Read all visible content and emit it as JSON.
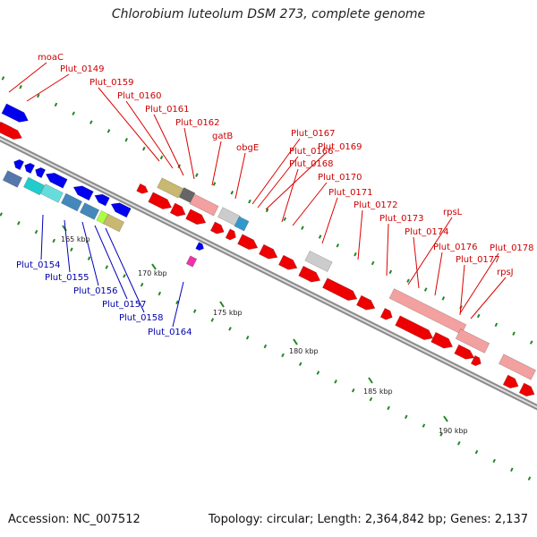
{
  "title": "Chlorobium luteolum DSM 273, complete genome",
  "footer": {
    "accession": "Accession: NC_007512",
    "info": "Topology: circular; Length: 2,364,842 bp; Genes: 2,137"
  },
  "colors": {
    "forward_strand": "#ee0000",
    "reverse_strand": "#0000ee",
    "pseudo_pink": "#f2a0a0",
    "label_forward": "#cc0000",
    "label_reverse": "#0000aa",
    "backbone": "#999999",
    "tick": "#228822"
  },
  "scale_labels": [
    "165 kbp",
    "170 kbp",
    "175 kbp",
    "180 kbp",
    "185 kbp",
    "190 kbp"
  ],
  "forward_gene_labels": [
    "moaC",
    "Plut_0149",
    "Plut_0159",
    "Plut_0160",
    "Plut_0161",
    "Plut_0162",
    "gatB",
    "obgE",
    "Plut_0167",
    "Plut_0166",
    "Plut_0169",
    "Plut_0168",
    "Plut_0170",
    "Plut_0171",
    "Plut_0172",
    "Plut_0173",
    "rpsL",
    "Plut_0174",
    "Plut_0176",
    "Plut_0178",
    "Plut_0177",
    "rpsJ"
  ],
  "reverse_gene_labels": [
    "Plut_0154",
    "Plut_0155",
    "Plut_0156",
    "Plut_0157",
    "Plut_0158",
    "Plut_0164"
  ]
}
